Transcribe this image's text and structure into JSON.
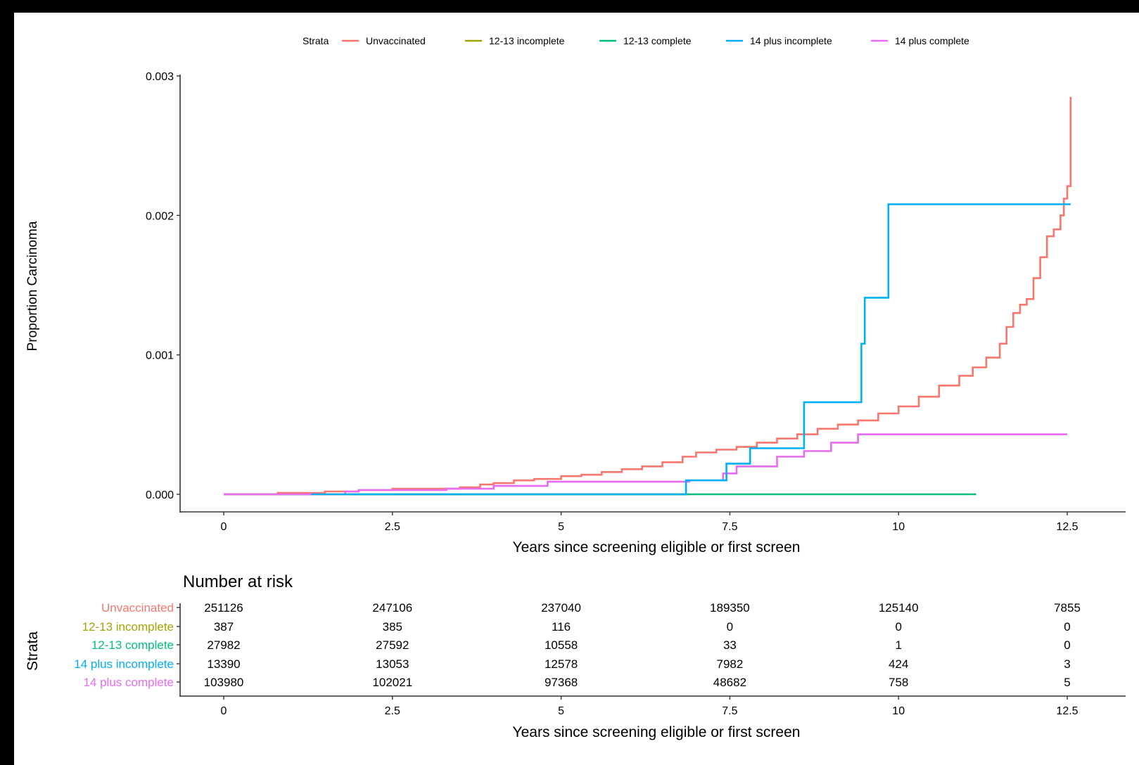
{
  "colors": {
    "Unvaccinated": "#F8766D",
    "12-13 incomplete": "#A3A500",
    "12-13 complete": "#00BF7D",
    "14 plus incomplete": "#00B0F6",
    "14 plus complete": "#E76BF3",
    "axis": "#333333",
    "text": "#000000"
  },
  "legend": {
    "title": "Strata",
    "entries": [
      "Unvaccinated",
      "12-13 incomplete",
      "12-13 complete",
      "14 plus incomplete",
      "14 plus complete"
    ]
  },
  "chart_data": [
    {
      "type": "line",
      "title": "",
      "xlabel": "Years since screening eligible or first screen",
      "ylabel": "Proportion Carcinoma",
      "xlim": [
        0,
        12.5
      ],
      "ylim": [
        0,
        0.003
      ],
      "xticks": [
        "0",
        "2.5",
        "5",
        "7.5",
        "10",
        "12.5"
      ],
      "yticks": [
        "0.000",
        "0.001",
        "0.002",
        "0.003"
      ],
      "grid": false,
      "legend_position": "top",
      "step": true,
      "series": [
        {
          "name": "Unvaccinated",
          "x": [
            0,
            0.8,
            1.5,
            2.0,
            2.5,
            3.0,
            3.5,
            3.8,
            4.0,
            4.3,
            4.6,
            5.0,
            5.3,
            5.6,
            5.9,
            6.2,
            6.5,
            6.8,
            7.0,
            7.3,
            7.6,
            7.9,
            8.2,
            8.5,
            8.8,
            9.1,
            9.4,
            9.7,
            10.0,
            10.3,
            10.6,
            10.9,
            11.1,
            11.3,
            11.5,
            11.6,
            11.7,
            11.8,
            11.9,
            12.0,
            12.1,
            12.2,
            12.3,
            12.4,
            12.45,
            12.5,
            12.55
          ],
          "y": [
            0,
            1e-05,
            2e-05,
            3e-05,
            4e-05,
            4e-05,
            5e-05,
            7e-05,
            8e-05,
            0.0001,
            0.00011,
            0.00013,
            0.00014,
            0.00016,
            0.00018,
            0.0002,
            0.00023,
            0.00027,
            0.0003,
            0.00032,
            0.00034,
            0.00037,
            0.0004,
            0.00043,
            0.00047,
            0.0005,
            0.00053,
            0.00058,
            0.00063,
            0.0007,
            0.00078,
            0.00085,
            0.00091,
            0.00098,
            0.00108,
            0.0012,
            0.0013,
            0.00136,
            0.0014,
            0.00155,
            0.0017,
            0.00185,
            0.0019,
            0.002,
            0.00212,
            0.00221,
            0.00285
          ]
        },
        {
          "name": "12-13 incomplete",
          "x": [
            0,
            6.9
          ],
          "y": [
            0,
            0
          ]
        },
        {
          "name": "12-13 complete",
          "x": [
            0,
            11.15
          ],
          "y": [
            0,
            0
          ]
        },
        {
          "name": "14 plus incomplete",
          "x": [
            1.3,
            6.85,
            7.45,
            7.8,
            8.6,
            9.45,
            9.5,
            9.85,
            12.55
          ],
          "y": [
            0,
            0.0001,
            0.00022,
            0.00033,
            0.00066,
            0.00108,
            0.00141,
            0.00208,
            0.00208
          ]
        },
        {
          "name": "14 plus complete",
          "x": [
            0,
            1.8,
            2.0,
            3.3,
            4.0,
            4.8,
            6.9,
            7.4,
            7.6,
            8.2,
            8.6,
            9.0,
            9.4,
            12.5
          ],
          "y": [
            0,
            2e-05,
            3e-05,
            4e-05,
            6e-05,
            9e-05,
            0.0001,
            0.00015,
            0.0002,
            0.00027,
            0.00031,
            0.00037,
            0.00043,
            0.00043
          ]
        }
      ]
    },
    {
      "type": "table",
      "title": "Number at risk",
      "xlabel": "Years since screening eligible or first screen",
      "ylabel": "Strata",
      "xticks": [
        "0",
        "2.5",
        "5",
        "7.5",
        "10",
        "12.5"
      ],
      "time_points": [
        0,
        2.5,
        5,
        7.5,
        10,
        12.5
      ],
      "rows": [
        {
          "name": "Unvaccinated",
          "values": [
            "251126",
            "247106",
            "237040",
            "189350",
            "125140",
            "7855"
          ]
        },
        {
          "name": "12-13 incomplete",
          "values": [
            "387",
            "385",
            "116",
            "0",
            "0",
            "0"
          ]
        },
        {
          "name": "12-13 complete",
          "values": [
            "27982",
            "27592",
            "10558",
            "33",
            "1",
            "0"
          ]
        },
        {
          "name": "14 plus incomplete",
          "values": [
            "13390",
            "13053",
            "12578",
            "7982",
            "424",
            "3"
          ]
        },
        {
          "name": "14 plus complete",
          "values": [
            "103980",
            "102021",
            "97368",
            "48682",
            "758",
            "5"
          ]
        }
      ]
    }
  ]
}
